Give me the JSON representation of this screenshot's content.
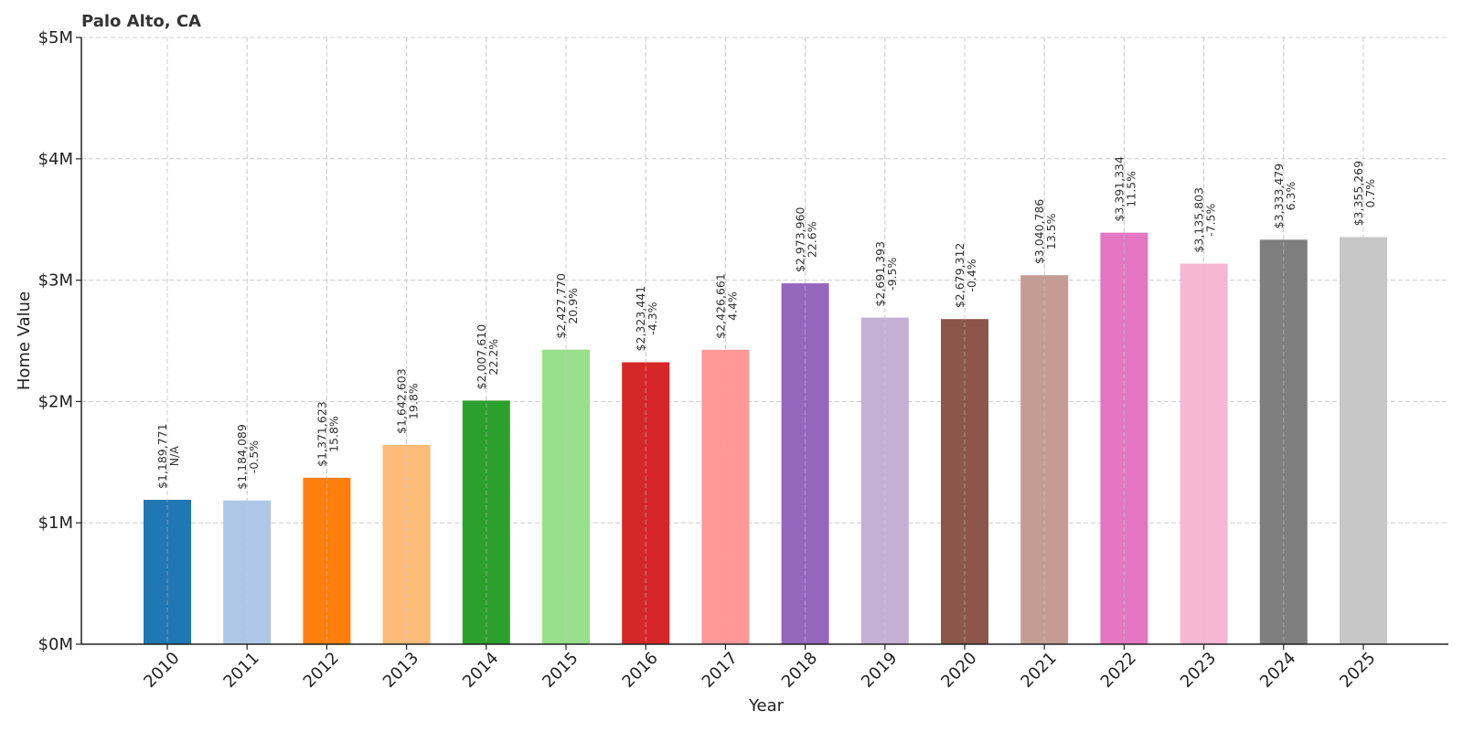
{
  "chart_data": {
    "type": "bar",
    "title": "Palo Alto, CA",
    "xlabel": "Year",
    "ylabel": "Home Value",
    "ylim": [
      0,
      5000000
    ],
    "yticks": [
      0,
      1000000,
      2000000,
      3000000,
      4000000,
      5000000
    ],
    "ytick_labels": [
      "$0M",
      "$1M",
      "$2M",
      "$3M",
      "$4M",
      "$5M"
    ],
    "grid": true,
    "categories": [
      "2010",
      "2011",
      "2012",
      "2013",
      "2014",
      "2015",
      "2016",
      "2017",
      "2018",
      "2019",
      "2020",
      "2021",
      "2022",
      "2023",
      "2024",
      "2025"
    ],
    "values": [
      1189771,
      1184089,
      1371623,
      1642603,
      2007610,
      2427770,
      2323441,
      2426661,
      2973960,
      2691393,
      2679312,
      3040786,
      3391334,
      3135803,
      3333479,
      3355269
    ],
    "value_labels": [
      "$1,189,771",
      "$1,184,089",
      "$1,371,623",
      "$1,642,603",
      "$2,007,610",
      "$2,427,770",
      "$2,323,441",
      "$2,426,661",
      "$2,973,960",
      "$2,691,393",
      "$2,679,312",
      "$3,040,786",
      "$3,391,334",
      "$3,135,803",
      "$3,333,479",
      "$3,355,269"
    ],
    "change_labels": [
      "N/A",
      "-0.5%",
      "15.8%",
      "19.8%",
      "22.2%",
      "20.9%",
      "-4.3%",
      "4.4%",
      "22.6%",
      "-9.5%",
      "-0.4%",
      "13.5%",
      "11.5%",
      "-7.5%",
      "6.3%",
      "0.7%"
    ],
    "colors": [
      "#1f77b4",
      "#aec7e8",
      "#ff7f0e",
      "#ffbb78",
      "#2ca02c",
      "#98df8a",
      "#d62728",
      "#ff9896",
      "#9467bd",
      "#c5b0d5",
      "#8c564b",
      "#c49c94",
      "#e377c2",
      "#f7b6d2",
      "#7f7f7f",
      "#c7c7c7"
    ]
  }
}
